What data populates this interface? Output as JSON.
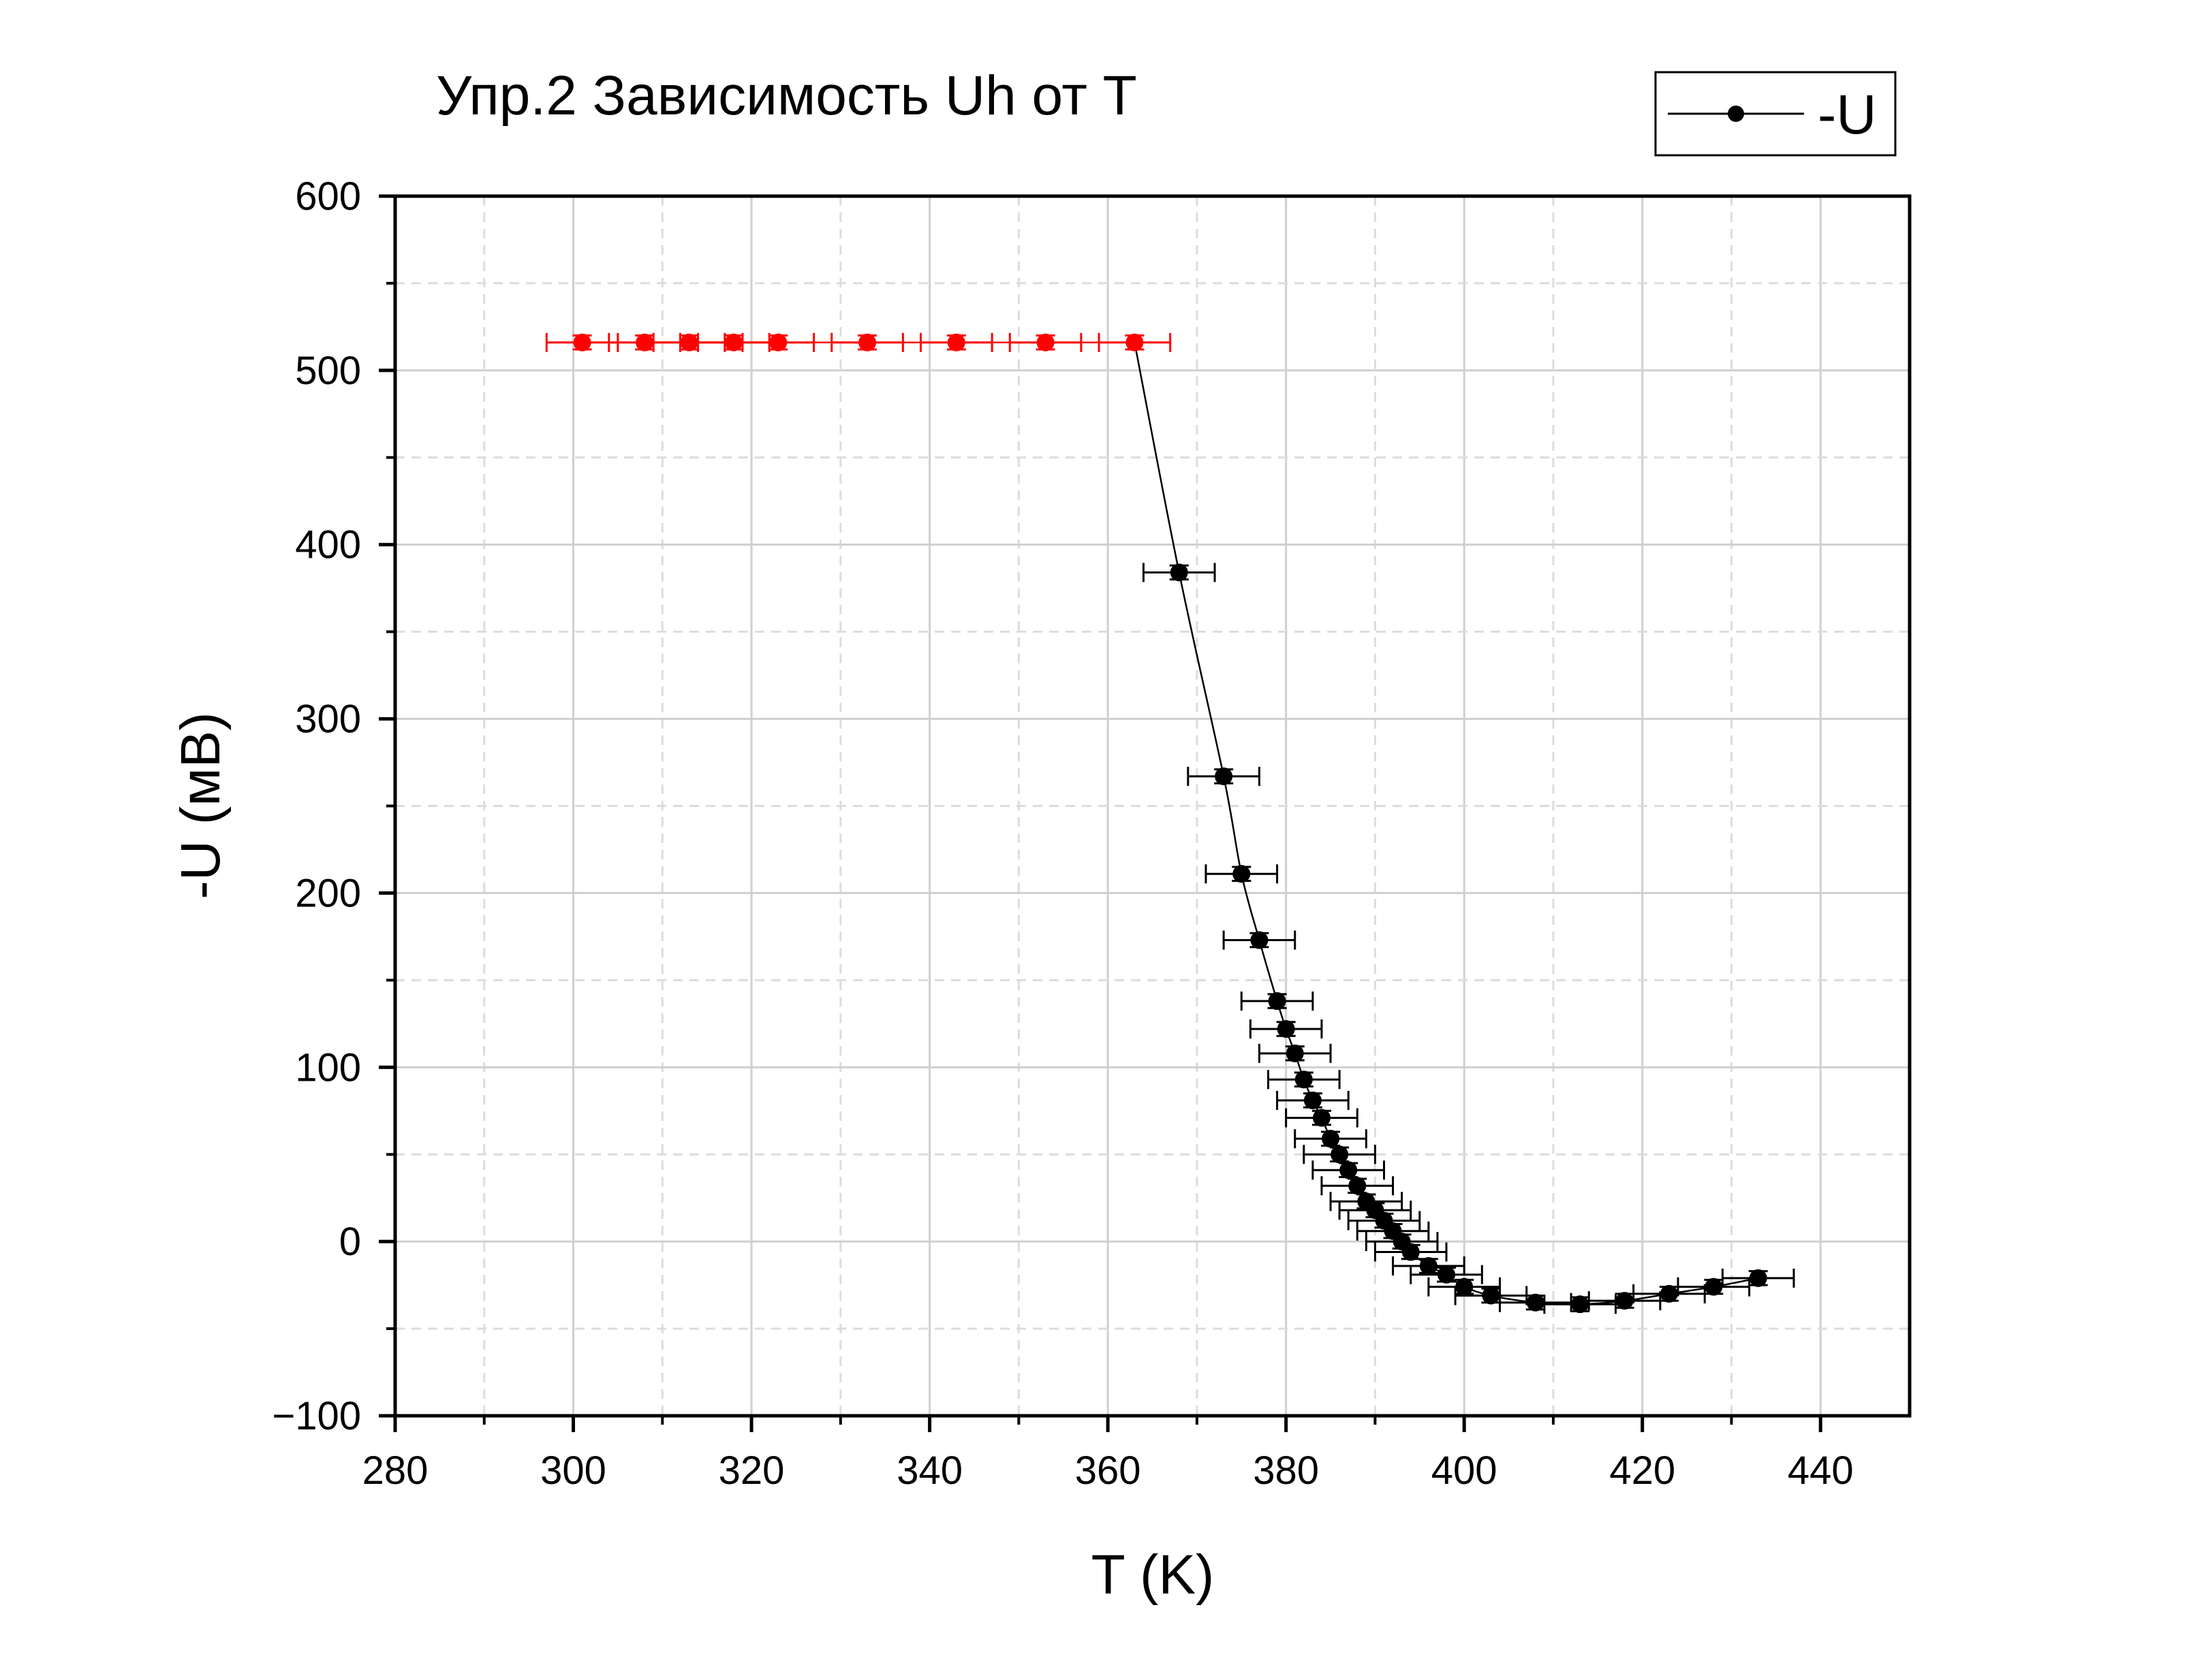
{
  "chart_data": {
    "type": "scatter",
    "title": "Упр.2 Зависимость Uh от T",
    "xlabel": "T (K)",
    "ylabel": "-U (мВ)",
    "xlim": [
      280,
      450
    ],
    "ylim": [
      -100,
      600
    ],
    "xticks": [
      280,
      300,
      320,
      340,
      360,
      380,
      400,
      420,
      440
    ],
    "yticks": [
      -100,
      0,
      100,
      200,
      300,
      400,
      500,
      600
    ],
    "xtick_labels": [
      "280",
      "300",
      "320",
      "340",
      "360",
      "380",
      "400",
      "420",
      "440"
    ],
    "ytick_labels": [
      "−100",
      "0",
      "100",
      "200",
      "300",
      "400",
      "500",
      "600"
    ],
    "grid": true,
    "legend": {
      "position": "top-right",
      "entries": [
        "-U"
      ]
    },
    "series": [
      {
        "name": "-U",
        "color": "#000000",
        "x_error": 4,
        "y_error": 4,
        "x": [
          368,
          373,
          375,
          377,
          379,
          380,
          381,
          382,
          383,
          384,
          385,
          386,
          387,
          388,
          389,
          390,
          391,
          392,
          393,
          394,
          396,
          398,
          400,
          403,
          408,
          413,
          418,
          423,
          428,
          433
        ],
        "y": [
          384,
          267,
          211,
          173,
          138,
          122,
          108,
          93,
          81,
          71,
          59,
          50,
          41,
          32,
          23,
          18,
          12,
          6,
          0,
          -6,
          -14,
          -19,
          -26,
          -31,
          -35,
          -36,
          -34,
          -30,
          -26,
          -21
        ]
      },
      {
        "name": "",
        "color": "#ff0000",
        "x_error": 4,
        "y_error": 4,
        "x": [
          301,
          308,
          313,
          318,
          323,
          333,
          343,
          353,
          363
        ],
        "y": [
          516,
          516,
          516,
          516,
          516,
          516,
          516,
          516,
          516
        ]
      }
    ]
  }
}
